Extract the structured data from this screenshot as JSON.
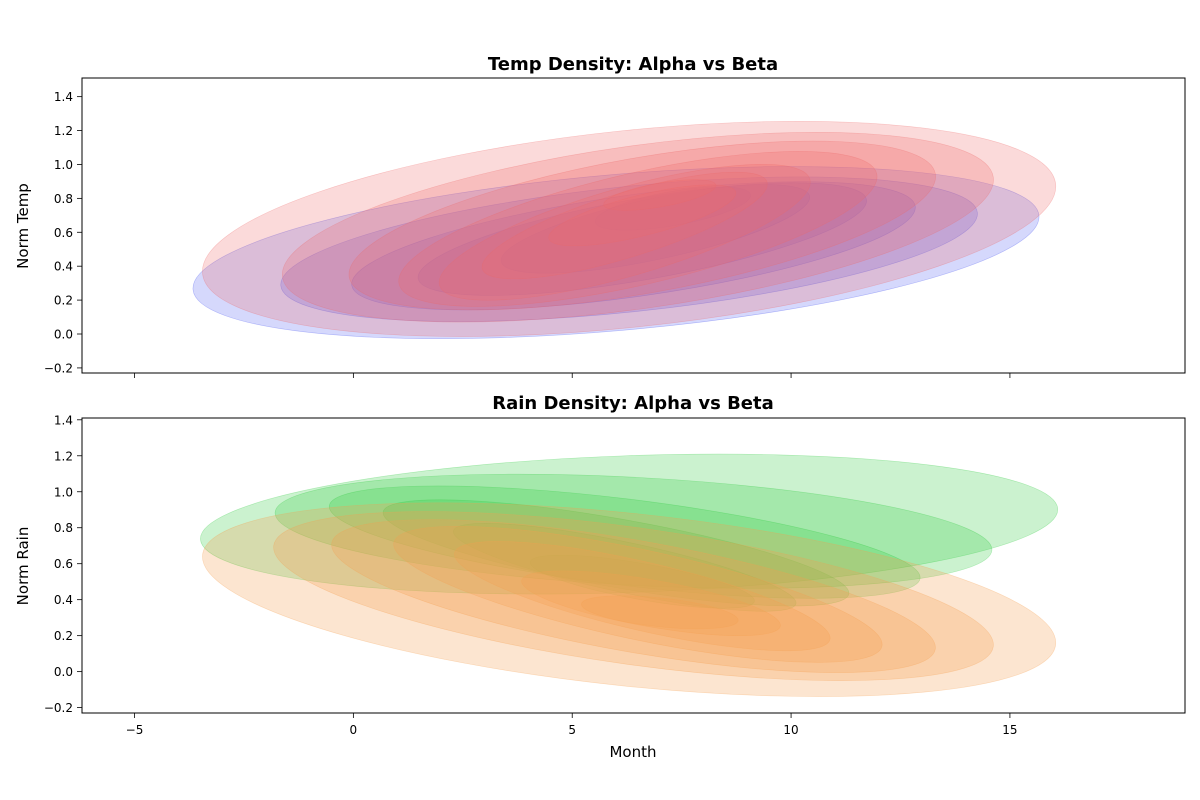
{
  "chart_data": [
    {
      "type": "kde",
      "title": "Temp Density: Alpha vs Beta",
      "xlabel": "",
      "ylabel": "Norm Temp",
      "xlim": [
        -6.2,
        19.0
      ],
      "ylim": [
        -0.23,
        1.51
      ],
      "xticks": [
        -5,
        0,
        5,
        10,
        15
      ],
      "xtick_labels_shown": false,
      "yticks": [
        -0.2,
        0.0,
        0.2,
        0.4,
        0.6,
        0.8,
        1.0,
        1.2,
        1.4
      ],
      "ytick_labels": [
        "−0.2",
        "0.0",
        "0.2",
        "0.4",
        "0.6",
        "0.8",
        "1.0",
        "1.2",
        "1.4"
      ],
      "grid": false,
      "series": [
        {
          "color": "#3f4cf0",
          "fill_opacity": 0.22,
          "levels": [
            {
              "cx": 6.0,
              "cy": 0.48,
              "rx": 9.7,
              "ry": 0.46,
              "rot": 5
            },
            {
              "cx": 6.3,
              "cy": 0.5,
              "rx": 8.0,
              "ry": 0.37,
              "rot": 6
            },
            {
              "cx": 6.4,
              "cy": 0.52,
              "rx": 6.5,
              "ry": 0.3,
              "rot": 8
            },
            {
              "cx": 6.6,
              "cy": 0.56,
              "rx": 5.2,
              "ry": 0.24,
              "rot": 10
            },
            {
              "cx": 6.9,
              "cy": 0.62,
              "rx": 3.6,
              "ry": 0.18,
              "rot": 12
            },
            {
              "cx": 7.3,
              "cy": 0.74,
              "rx": 1.8,
              "ry": 0.1,
              "rot": 10
            }
          ]
        },
        {
          "color": "#ef6a6a",
          "fill_opacity": 0.25,
          "levels": [
            {
              "cx": 6.3,
              "cy": 0.62,
              "rx": 9.8,
              "ry": 0.58,
              "rot": 6
            },
            {
              "cx": 6.5,
              "cy": 0.63,
              "rx": 8.2,
              "ry": 0.48,
              "rot": 8
            },
            {
              "cx": 6.6,
              "cy": 0.64,
              "rx": 6.8,
              "ry": 0.4,
              "rot": 10
            },
            {
              "cx": 6.5,
              "cy": 0.62,
              "rx": 5.6,
              "ry": 0.33,
              "rot": 13
            },
            {
              "cx": 6.2,
              "cy": 0.6,
              "rx": 4.4,
              "ry": 0.26,
              "rot": 16
            },
            {
              "cx": 6.2,
              "cy": 0.64,
              "rx": 3.4,
              "ry": 0.19,
              "rot": 17
            },
            {
              "cx": 6.6,
              "cy": 0.7,
              "rx": 2.2,
              "ry": 0.12,
              "rot": 14
            },
            {
              "cx": 7.0,
              "cy": 0.82,
              "rx": 1.3,
              "ry": 0.07,
              "rot": 10
            }
          ]
        }
      ]
    },
    {
      "type": "kde",
      "title": "Rain Density: Alpha vs Beta",
      "xlabel": "Month",
      "ylabel": "Norm Rain",
      "xlim": [
        -6.2,
        19.0
      ],
      "ylim": [
        -0.23,
        1.41
      ],
      "xticks": [
        -5,
        0,
        5,
        10,
        15
      ],
      "xtick_labels": [
        "−5",
        "0",
        "5",
        "10",
        "15"
      ],
      "yticks": [
        -0.2,
        0.0,
        0.2,
        0.4,
        0.6,
        0.8,
        1.0,
        1.2,
        1.4
      ],
      "ytick_labels": [
        "−0.2",
        "0.0",
        "0.2",
        "0.4",
        "0.6",
        "0.8",
        "1.0",
        "1.2",
        "1.4"
      ],
      "grid": false,
      "series": [
        {
          "color": "#2ecc40",
          "fill_opacity": 0.25,
          "levels": [
            {
              "cx": 6.3,
              "cy": 0.82,
              "rx": 9.8,
              "ry": 0.38,
              "rot": 2
            },
            {
              "cx": 6.4,
              "cy": 0.78,
              "rx": 8.2,
              "ry": 0.3,
              "rot": -3
            },
            {
              "cx": 6.2,
              "cy": 0.72,
              "rx": 6.8,
              "ry": 0.24,
              "rot": -7
            },
            {
              "cx": 6.0,
              "cy": 0.66,
              "rx": 5.4,
              "ry": 0.19,
              "rot": -10
            },
            {
              "cx": 6.2,
              "cy": 0.58,
              "rx": 4.0,
              "ry": 0.14,
              "rot": -12
            },
            {
              "cx": 6.6,
              "cy": 0.5,
              "rx": 2.6,
              "ry": 0.1,
              "rot": -10
            }
          ]
        },
        {
          "color": "#f5a050",
          "fill_opacity": 0.27,
          "levels": [
            {
              "cx": 6.3,
              "cy": 0.4,
              "rx": 9.8,
              "ry": 0.48,
              "rot": -6
            },
            {
              "cx": 6.4,
              "cy": 0.42,
              "rx": 8.3,
              "ry": 0.38,
              "rot": -8
            },
            {
              "cx": 6.4,
              "cy": 0.42,
              "rx": 7.0,
              "ry": 0.31,
              "rot": -10
            },
            {
              "cx": 6.5,
              "cy": 0.43,
              "rx": 5.7,
              "ry": 0.25,
              "rot": -12
            },
            {
              "cx": 6.6,
              "cy": 0.42,
              "rx": 4.4,
              "ry": 0.19,
              "rot": -13
            },
            {
              "cx": 6.8,
              "cy": 0.38,
              "rx": 3.0,
              "ry": 0.13,
              "rot": -10
            },
            {
              "cx": 7.0,
              "cy": 0.33,
              "rx": 1.8,
              "ry": 0.08,
              "rot": -6
            }
          ]
        }
      ]
    }
  ]
}
